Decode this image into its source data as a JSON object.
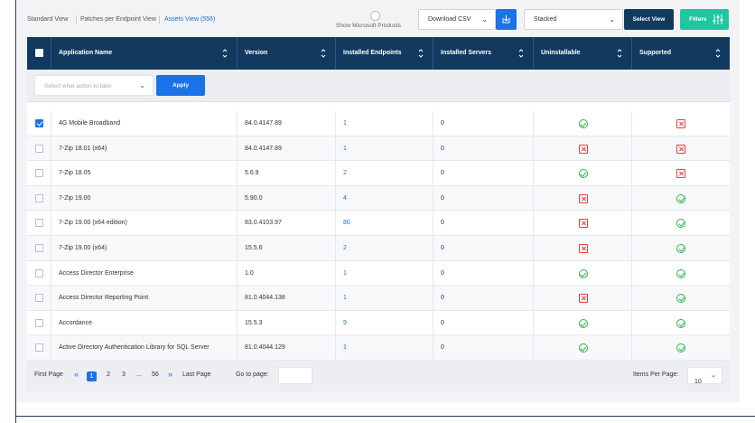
{
  "views": {
    "standard": "Standard View",
    "patches": "Patches per Endpoint View",
    "assets": "Assets View (556)"
  },
  "toolbar": {
    "show_microsoft_label": "Show Microsoft Products",
    "download_label": "Download CSV",
    "stack_label": "Stacked",
    "select_view_label": "Select View",
    "filters_label": "Filters"
  },
  "table": {
    "headers": {
      "name": "Application Name",
      "version": "Version",
      "endpoints": "Installed Endpoints",
      "servers": "Installed Servers",
      "uninstallable": "Uninstallable",
      "supported": "Supported"
    },
    "action_placeholder": "Select what action to take",
    "apply_label": "Apply",
    "rows": [
      {
        "name": "4G Mobile Broadband",
        "version": "84.0.4147.89",
        "endpoints": "1",
        "servers": "0",
        "uninstallable": true,
        "supported": false,
        "checked": true
      },
      {
        "name": "7-Zip 18.01 (x64)",
        "version": "84.0.4147.89",
        "endpoints": "1",
        "servers": "0",
        "uninstallable": false,
        "supported": false,
        "checked": false
      },
      {
        "name": "7-Zip 18.05",
        "version": "5.6.9",
        "endpoints": "2",
        "servers": "0",
        "uninstallable": true,
        "supported": false,
        "checked": false
      },
      {
        "name": "7-Zip 19.00",
        "version": "5.90.0",
        "endpoints": "4",
        "servers": "0",
        "uninstallable": false,
        "supported": true,
        "checked": false
      },
      {
        "name": "7-Zip 19.00 (x64 edition)",
        "version": "83.0.4103.97",
        "endpoints": "80",
        "servers": "0",
        "uninstallable": false,
        "supported": true,
        "checked": false
      },
      {
        "name": "7-Zip 19.00 (x64)",
        "version": "15.5.6",
        "endpoints": "2",
        "servers": "0",
        "uninstallable": false,
        "supported": true,
        "checked": false
      },
      {
        "name": "Access Director Enterprise",
        "version": "1.0",
        "endpoints": "1",
        "servers": "0",
        "uninstallable": true,
        "supported": true,
        "checked": false
      },
      {
        "name": "Access Director Reporting Point",
        "version": "81.0.4044.138",
        "endpoints": "1",
        "servers": "0",
        "uninstallable": false,
        "supported": true,
        "checked": false
      },
      {
        "name": "Accordance",
        "version": "15.5.3",
        "endpoints": "9",
        "servers": "0",
        "uninstallable": true,
        "supported": true,
        "checked": false
      },
      {
        "name": "Active Directory Authentication Library for SQL Server",
        "version": "81.0.4044.129",
        "endpoints": "1",
        "servers": "0",
        "uninstallable": true,
        "supported": true,
        "checked": false
      }
    ]
  },
  "pagination": {
    "first": "First Page",
    "pages": [
      "1",
      "2",
      "3",
      "...",
      "56"
    ],
    "last": "Last Page",
    "goto_label": "Go to page:",
    "items_per_page_label": "Items Per Page:",
    "items_per_page_value": "10"
  },
  "colors": {
    "header_bg": "#123a60",
    "primary": "#1a73e8",
    "filters": "#1fc6a0",
    "ok": "#2fb24c",
    "error": "#e34040"
  }
}
